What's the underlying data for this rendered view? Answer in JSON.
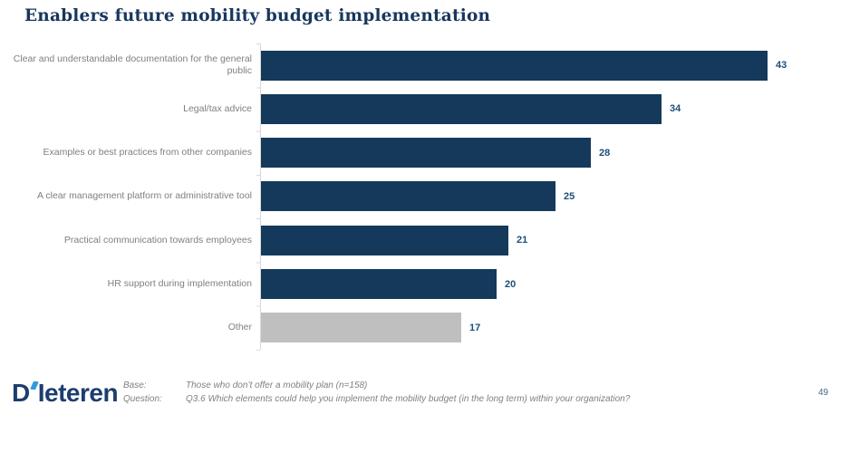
{
  "page_title": "Enablers future mobility budget implementation",
  "chart_data": {
    "type": "bar",
    "orientation": "horizontal",
    "title": "Enablers future mobility budget implementation",
    "categories": [
      "Clear and understandable documentation for the general public",
      "Legal/tax advice",
      "Examples or best practices from other companies",
      "A clear management platform or administrative tool",
      "Practical communication towards employees",
      "HR support during implementation",
      "Other"
    ],
    "values": [
      43,
      34,
      28,
      25,
      21,
      20,
      17
    ],
    "bar_colors": [
      "#14395B",
      "#14395B",
      "#14395B",
      "#14395B",
      "#14395B",
      "#14395B",
      "#BFBFBF"
    ],
    "value_label_color": "#1F4E79",
    "xlabel": "",
    "ylabel": "",
    "xlim": [
      0,
      50
    ],
    "grid": false,
    "legend": false,
    "value_labels_shown": true
  },
  "footer": {
    "logo": {
      "d": "D",
      "rest": "Ieteren",
      "apostrophe_color": "#2E9CD9"
    },
    "rows": [
      {
        "label": "Base:",
        "value": "Those who don’t offer a mobility plan (n=158)"
      },
      {
        "label": "Question:",
        "value": "Q3.6 Which elements could help you implement the mobility budget (in the long term) within your organization?"
      }
    ],
    "page_number": "49"
  },
  "colors": {
    "title": "#17375D",
    "category_label": "#7F7F7F",
    "value_label": "#1F4E79",
    "axis": "#D9D9D9",
    "navy_bar": "#14395B",
    "other_bar": "#BFBFBF",
    "logo": "#1C3E6E",
    "page_number": "#44688C"
  }
}
